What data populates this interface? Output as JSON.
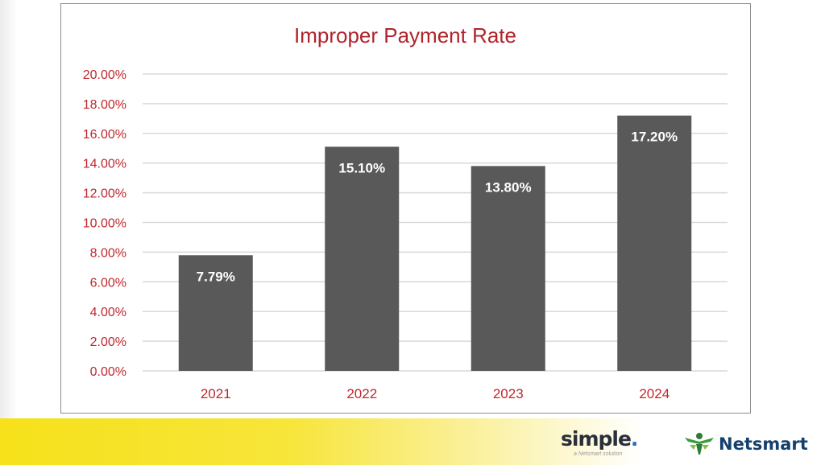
{
  "chart_data": {
    "type": "bar",
    "title": "Improper Payment Rate",
    "categories": [
      "2021",
      "2022",
      "2023",
      "2024"
    ],
    "values": [
      7.79,
      15.1,
      13.8,
      17.2
    ],
    "data_labels": [
      "7.79%",
      "15.10%",
      "13.80%",
      "17.20%"
    ],
    "y_ticks": [
      "0.00%",
      "2.00%",
      "4.00%",
      "6.00%",
      "8.00%",
      "10.00%",
      "12.00%",
      "14.00%",
      "16.00%",
      "18.00%",
      "20.00%"
    ],
    "ylim": [
      0,
      20
    ],
    "grid": true,
    "legend": "none",
    "colors": {
      "bar": "#595959",
      "tick_text": "#c0272d",
      "title_text": "#b0232a",
      "gridline": "#d9d9d9",
      "data_label": "#ffffff"
    }
  },
  "footer": {
    "logo_left": {
      "name": "simple",
      "dot": ".",
      "tagline": "a Netsmart solution"
    },
    "logo_right": {
      "name": "Netsmart"
    }
  }
}
